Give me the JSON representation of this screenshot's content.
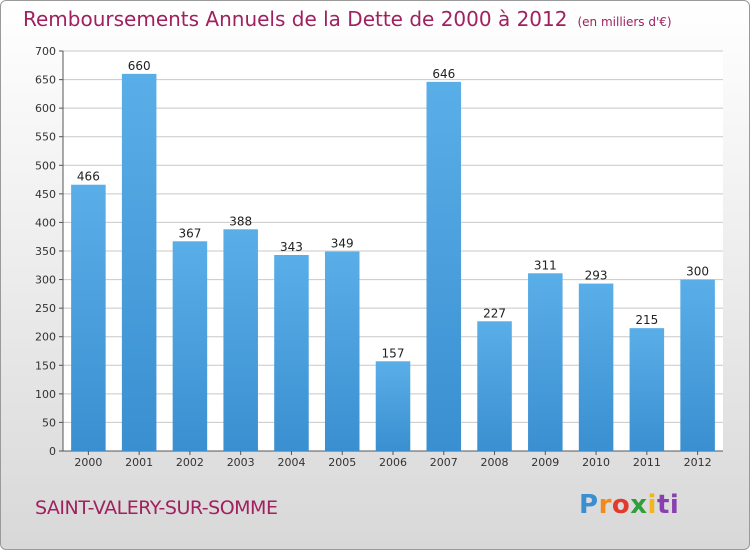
{
  "title": "Remboursements Annuels de la Dette de 2000 à 2012",
  "subtitle": "(en milliers d'€)",
  "commune": "SAINT-VALERY-SUR-SOMME",
  "logo": {
    "letters": [
      "P",
      "r",
      "o",
      "x",
      "i",
      "ti"
    ],
    "colors": [
      "#3a8fd0",
      "#f08a1c",
      "#e23b2d",
      "#2f9e3b",
      "#f2b51d",
      "#8a3fb0"
    ]
  },
  "colors": {
    "bar": "#3a8fd0",
    "bar_light": "#5aaee8",
    "title": "#a0215f",
    "grid": "#c8c8c8"
  },
  "chart_data": {
    "type": "bar",
    "title": "Remboursements Annuels de la Dette de 2000 à 2012",
    "subtitle": "(en milliers d'€)",
    "categories": [
      "2000",
      "2001",
      "2002",
      "2003",
      "2004",
      "2005",
      "2006",
      "2007",
      "2008",
      "2009",
      "2010",
      "2011",
      "2012"
    ],
    "values": [
      466,
      660,
      367,
      388,
      343,
      349,
      157,
      646,
      227,
      311,
      293,
      215,
      300
    ],
    "value_labels": [
      "466",
      "660",
      "367",
      "388",
      "343",
      "349",
      "157",
      "646",
      "227",
      "311",
      "293",
      "215",
      "300"
    ],
    "xlabel": "",
    "ylabel": "",
    "ylim": [
      0,
      700
    ],
    "yticks": [
      0,
      50,
      100,
      150,
      200,
      250,
      300,
      350,
      400,
      450,
      500,
      550,
      600,
      650,
      700
    ],
    "grid": true,
    "legend": "none"
  }
}
